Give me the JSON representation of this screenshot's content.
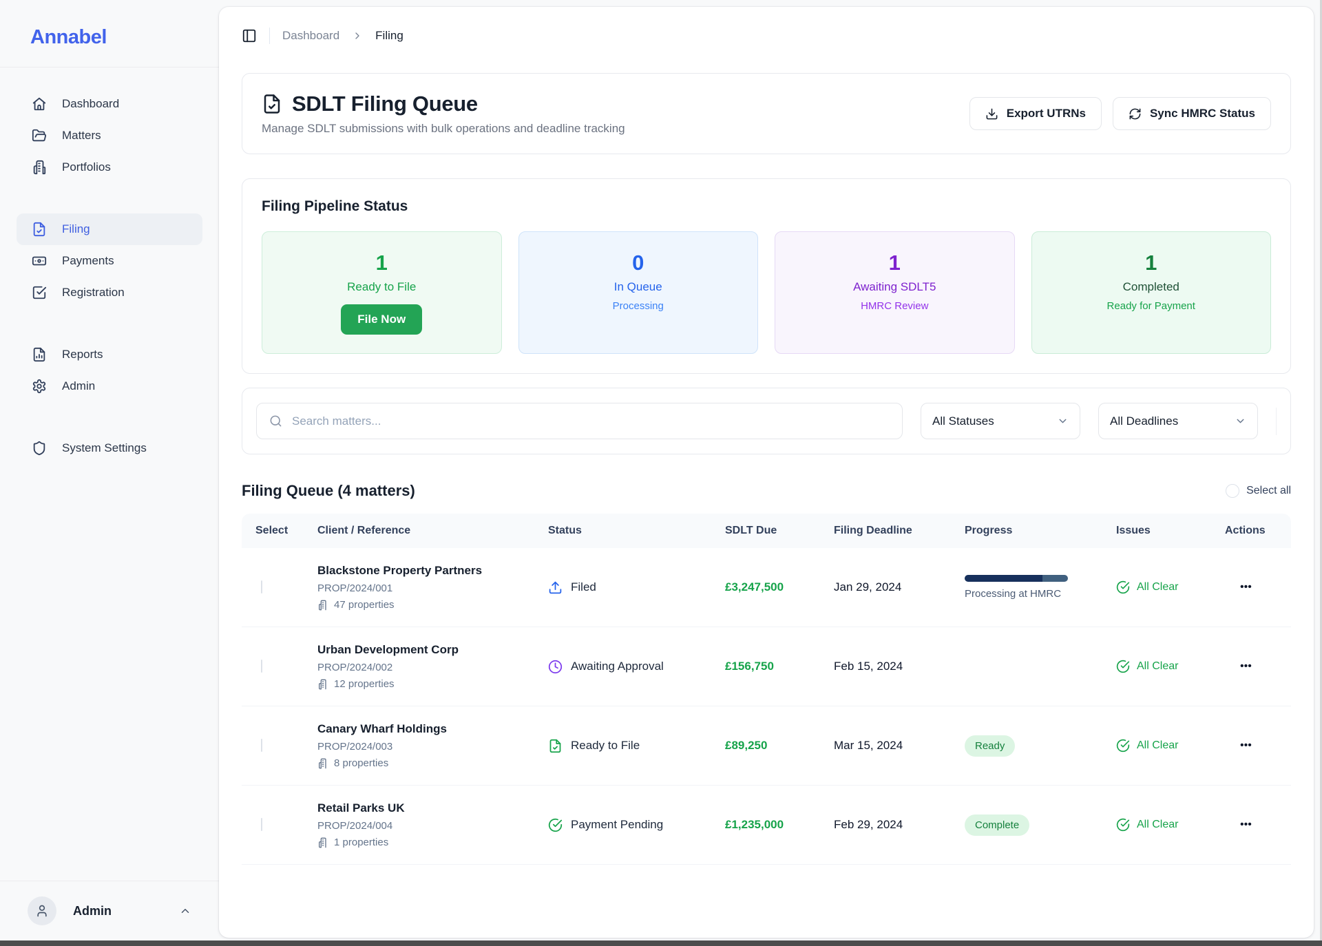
{
  "brand": {
    "name": "Annabel"
  },
  "sidebar": {
    "items": [
      {
        "label": "Dashboard",
        "icon": "home"
      },
      {
        "label": "Matters",
        "icon": "folder-open"
      },
      {
        "label": "Portfolios",
        "icon": "building"
      },
      {
        "label": "Filing",
        "icon": "file-check",
        "active": true
      },
      {
        "label": "Payments",
        "icon": "banknote"
      },
      {
        "label": "Registration",
        "icon": "check-square"
      },
      {
        "label": "Reports",
        "icon": "file-chart"
      },
      {
        "label": "Admin",
        "icon": "gear"
      },
      {
        "label": "System Settings",
        "icon": "shield"
      }
    ],
    "footer": {
      "user": "Admin"
    }
  },
  "breadcrumb": {
    "parent": "Dashboard",
    "current": "Filing"
  },
  "header": {
    "title": "SDLT Filing Queue",
    "subtitle": "Manage SDLT submissions with bulk operations and deadline tracking",
    "export_button": "Export UTRNs",
    "sync_button": "Sync HMRC Status"
  },
  "pipeline": {
    "title": "Filing Pipeline Status",
    "cards": [
      {
        "value": "1",
        "label": "Ready to File",
        "action": "File Now",
        "theme": "green"
      },
      {
        "value": "0",
        "label": "In Queue",
        "sub": "Processing",
        "theme": "blue"
      },
      {
        "value": "1",
        "label": "Awaiting SDLT5",
        "sub": "HMRC Review",
        "theme": "purple"
      },
      {
        "value": "1",
        "label": "Completed",
        "sub": "Ready for Payment",
        "theme": "teal"
      }
    ]
  },
  "filters": {
    "search_placeholder": "Search matters...",
    "status_filter": "All Statuses",
    "deadline_filter": "All Deadlines"
  },
  "queue": {
    "title": "Filing Queue (4 matters)",
    "select_all": "Select all",
    "columns": [
      "Select",
      "Client / Reference",
      "Status",
      "SDLT Due",
      "Filing Deadline",
      "Progress",
      "Issues",
      "Actions"
    ],
    "rows": [
      {
        "client": "Blackstone Property Partners",
        "reference": "PROP/2024/001",
        "properties": "47 properties",
        "status": "Filed",
        "status_icon": "upload",
        "sdlt_due": "£3,247,500",
        "deadline": "Jan 29, 2024",
        "progress_label": "Processing at HMRC",
        "progress_pct": "75",
        "issues": "All Clear",
        "actions": "•••"
      },
      {
        "client": "Urban Development Corp",
        "reference": "PROP/2024/002",
        "properties": "12 properties",
        "status": "Awaiting Approval",
        "status_icon": "clock",
        "sdlt_due": "£156,750",
        "deadline": "Feb 15, 2024",
        "issues": "All Clear",
        "actions": "•••"
      },
      {
        "client": "Canary Wharf Holdings",
        "reference": "PROP/2024/003",
        "properties": "8 properties",
        "status": "Ready to File",
        "status_icon": "file-check",
        "sdlt_due": "£89,250",
        "deadline": "Mar 15, 2024",
        "badge": "Ready",
        "issues": "All Clear",
        "actions": "•••"
      },
      {
        "client": "Retail Parks UK",
        "reference": "PROP/2024/004",
        "properties": "1 properties",
        "status": "Payment Pending",
        "status_icon": "check-circle",
        "sdlt_due": "£1,235,000",
        "deadline": "Feb 29, 2024",
        "badge": "Complete",
        "issues": "All Clear",
        "actions": "•••"
      }
    ]
  },
  "colors": {
    "brand_blue": "#4263eb",
    "active_nav": "#3f5fe0",
    "green": "#16a34a",
    "dark_green": "#15803d",
    "blue": "#2563eb",
    "purple": "#7e22ce",
    "progress_fill": "#17305c",
    "progress_track": "#40607f",
    "badge_bg": "#dcf5e3"
  }
}
